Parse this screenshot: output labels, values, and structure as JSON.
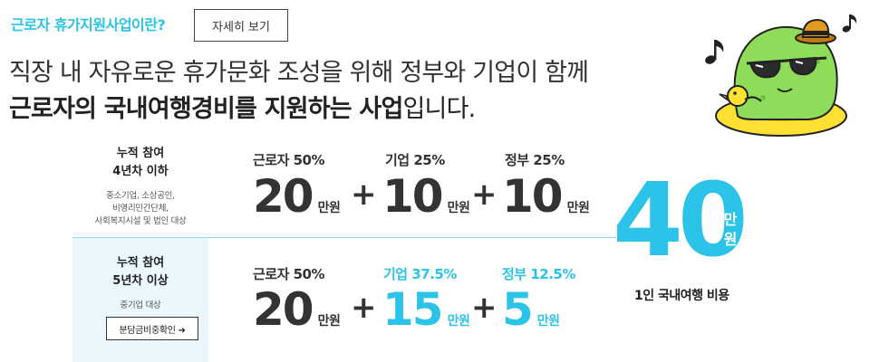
{
  "header": {
    "title": "근로자 휴가지원사업이란?",
    "more_button": "자세히 보기"
  },
  "intro": {
    "line1": "직장 내 자유로운 휴가문화 조성을 위해 정부와 기업이 함께",
    "line2_bold": "근로자의 국내여행경비를 지원하는 사업",
    "line2_rest": "입니다."
  },
  "rows": [
    {
      "title_1": "누적 참여",
      "title_2": "4년차 이하",
      "desc_1": "중소기업, 소상공인,",
      "desc_2": "비영리민간단체,",
      "desc_3": "사회복지시설 및 법인 대상",
      "worker_label": "근로자 50%",
      "worker_amount": "20",
      "company_label": "기업 25%",
      "company_amount": "10",
      "gov_label": "정부 25%",
      "gov_amount": "10",
      "unit": "만원"
    },
    {
      "title_1": "누적 참여",
      "title_2": "5년차 이상",
      "desc_1": "중기업 대상",
      "button": "분담금비중확인 ➜",
      "worker_label": "근로자 50%",
      "worker_amount": "20",
      "company_label": "기업 37.5%",
      "company_amount": "15",
      "gov_label": "정부 12.5%",
      "gov_amount": "5",
      "unit": "만원"
    }
  ],
  "plus": "+",
  "total": {
    "amount": "40",
    "unit_1": "만",
    "unit_2": "원",
    "caption": "1인 국내여행 비용"
  },
  "colors": {
    "accent": "#2bc4e8",
    "mascot_body": "#8fdc5a",
    "float_ring": "#ffe033"
  }
}
